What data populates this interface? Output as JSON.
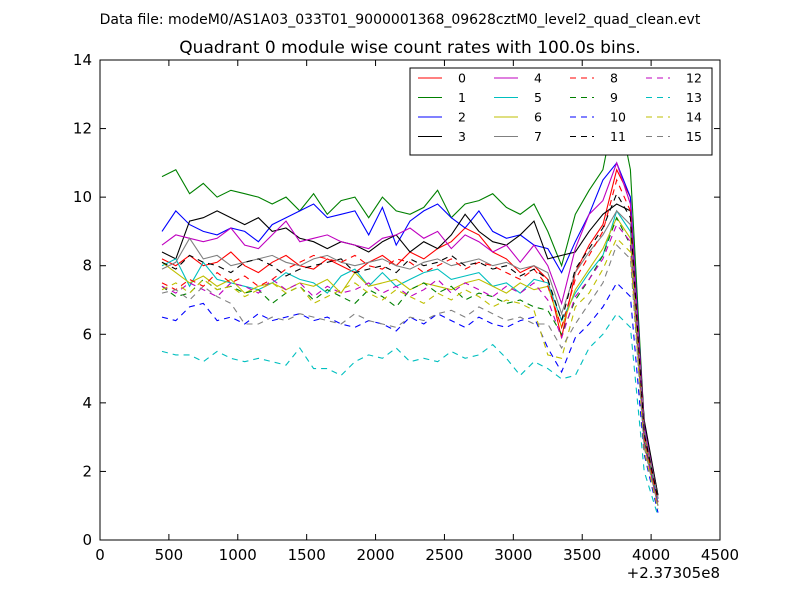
{
  "header": {
    "supertitle": "Data file: modeM0/AS1A03_033T01_9000001368_09628cztM0_level2_quad_clean.evt"
  },
  "chart_data": {
    "type": "line",
    "title": "Quadrant 0 module wise count rates with 100.0s bins.",
    "xlabel": "",
    "ylabel": "",
    "x_offset_label": "+2.37305e8",
    "xlim": [
      0,
      4500
    ],
    "ylim": [
      0,
      14
    ],
    "xticks": [
      0,
      500,
      1000,
      1500,
      2000,
      2500,
      3000,
      3500,
      4000,
      4500
    ],
    "yticks": [
      0,
      2,
      4,
      6,
      8,
      10,
      12,
      14
    ],
    "grid": false,
    "legend_position": "top-right",
    "legend_columns": 4,
    "x": [
      450,
      550,
      650,
      750,
      850,
      950,
      1050,
      1150,
      1250,
      1350,
      1450,
      1550,
      1650,
      1750,
      1850,
      1950,
      2050,
      2150,
      2250,
      2350,
      2450,
      2550,
      2650,
      2750,
      2850,
      2950,
      3050,
      3150,
      3250,
      3350,
      3450,
      3550,
      3650,
      3750,
      3850,
      3950,
      4050
    ],
    "series": [
      {
        "name": "0",
        "color": "#ff0000",
        "dash": "solid",
        "values": [
          8.2,
          8.0,
          8.3,
          8.0,
          8.1,
          8.4,
          8.0,
          7.8,
          8.1,
          8.3,
          8.0,
          7.9,
          8.2,
          8.0,
          7.8,
          8.1,
          8.3,
          8.0,
          8.4,
          8.2,
          8.5,
          8.7,
          9.1,
          8.9,
          8.4,
          8.2,
          7.8,
          8.0,
          7.6,
          5.9,
          7.8,
          8.6,
          9.2,
          10.8,
          10.0,
          3.1,
          1.2
        ]
      },
      {
        "name": "1",
        "color": "#008000",
        "dash": "solid",
        "values": [
          10.6,
          10.8,
          10.1,
          10.4,
          10.0,
          10.2,
          10.1,
          10.0,
          9.8,
          10.0,
          9.6,
          10.1,
          9.5,
          9.9,
          10.0,
          9.4,
          10.0,
          9.6,
          9.5,
          9.7,
          10.2,
          9.4,
          9.8,
          9.9,
          10.1,
          9.7,
          9.5,
          9.8,
          9.0,
          8.0,
          9.5,
          10.2,
          10.8,
          12.8,
          10.8,
          3.4,
          1.3
        ]
      },
      {
        "name": "2",
        "color": "#0000ff",
        "dash": "solid",
        "values": [
          9.0,
          9.6,
          9.2,
          9.0,
          8.9,
          9.1,
          9.0,
          8.7,
          9.2,
          9.4,
          9.6,
          9.8,
          9.4,
          9.5,
          9.6,
          8.9,
          9.7,
          8.6,
          9.3,
          9.6,
          9.8,
          9.4,
          9.1,
          9.6,
          9.0,
          8.8,
          8.9,
          8.6,
          8.5,
          7.8,
          8.7,
          9.5,
          10.5,
          11.0,
          10.0,
          3.4,
          1.2
        ]
      },
      {
        "name": "3",
        "color": "#000000",
        "dash": "solid",
        "values": [
          8.4,
          8.2,
          9.3,
          9.4,
          9.6,
          9.4,
          9.2,
          9.4,
          9.0,
          9.1,
          8.8,
          8.7,
          8.5,
          8.7,
          8.6,
          8.4,
          8.7,
          8.9,
          8.4,
          8.7,
          8.5,
          8.9,
          9.5,
          9.0,
          8.7,
          8.6,
          8.9,
          9.3,
          8.2,
          8.3,
          8.4,
          9.0,
          9.5,
          9.8,
          9.6,
          3.5,
          1.3
        ]
      },
      {
        "name": "4",
        "color": "#bf00bf",
        "dash": "solid",
        "values": [
          8.6,
          8.9,
          8.8,
          8.7,
          8.8,
          9.1,
          8.6,
          8.5,
          8.9,
          9.3,
          8.7,
          8.8,
          8.9,
          8.7,
          8.6,
          8.5,
          8.8,
          8.9,
          9.1,
          8.8,
          9.0,
          8.5,
          8.9,
          8.7,
          8.4,
          8.6,
          8.1,
          8.6,
          8.0,
          6.9,
          8.5,
          9.5,
          9.9,
          11.0,
          9.8,
          3.3,
          1.2
        ]
      },
      {
        "name": "5",
        "color": "#00bfbf",
        "dash": "solid",
        "values": [
          8.0,
          8.2,
          7.4,
          8.1,
          7.6,
          7.5,
          7.4,
          7.3,
          7.5,
          7.8,
          7.6,
          7.5,
          7.2,
          7.7,
          7.9,
          7.4,
          7.8,
          7.4,
          7.6,
          7.8,
          7.9,
          7.6,
          7.7,
          7.8,
          7.4,
          7.5,
          7.2,
          7.6,
          7.5,
          6.4,
          7.2,
          7.8,
          8.3,
          9.6,
          9.0,
          2.9,
          1.1
        ]
      },
      {
        "name": "6",
        "color": "#bfbf00",
        "dash": "solid",
        "values": [
          8.1,
          7.8,
          7.5,
          7.7,
          7.4,
          7.6,
          7.2,
          7.4,
          7.5,
          7.3,
          7.5,
          7.4,
          7.6,
          7.2,
          7.8,
          7.4,
          7.5,
          7.6,
          7.3,
          7.5,
          7.4,
          7.3,
          7.5,
          7.6,
          7.4,
          7.2,
          7.5,
          7.3,
          7.4,
          6.2,
          7.3,
          7.9,
          8.5,
          9.4,
          8.8,
          2.8,
          1.0
        ]
      },
      {
        "name": "7",
        "color": "#808080",
        "dash": "solid",
        "values": [
          7.9,
          8.1,
          8.8,
          8.2,
          8.3,
          8.0,
          8.1,
          8.2,
          8.3,
          8.1,
          8.0,
          8.2,
          8.3,
          8.1,
          8.0,
          8.1,
          8.2,
          8.0,
          7.9,
          8.1,
          8.2,
          8.0,
          8.1,
          8.2,
          8.0,
          8.1,
          7.9,
          8.0,
          7.8,
          6.6,
          7.8,
          8.4,
          8.9,
          9.6,
          9.2,
          3.2,
          1.2
        ]
      },
      {
        "name": "8",
        "color": "#ff0000",
        "dash": "dashed",
        "values": [
          7.5,
          7.3,
          7.6,
          7.4,
          7.8,
          7.5,
          7.7,
          7.4,
          7.6,
          7.9,
          8.1,
          8.3,
          8.2,
          8.1,
          8.3,
          8.0,
          7.9,
          8.2,
          8.1,
          7.8,
          8.0,
          8.2,
          7.9,
          8.1,
          8.0,
          7.8,
          7.6,
          7.9,
          7.4,
          6.2,
          7.6,
          8.3,
          9.0,
          10.5,
          9.6,
          3.0,
          1.1
        ]
      },
      {
        "name": "9",
        "color": "#008000",
        "dash": "dashed",
        "values": [
          7.4,
          7.1,
          7.2,
          7.6,
          7.3,
          7.4,
          7.2,
          7.3,
          6.9,
          7.2,
          7.4,
          7.0,
          7.3,
          7.1,
          6.9,
          7.3,
          7.1,
          6.8,
          7.3,
          7.5,
          7.2,
          7.4,
          7.0,
          7.2,
          7.1,
          6.9,
          7.0,
          6.8,
          6.7,
          6.0,
          7.0,
          7.6,
          8.3,
          9.4,
          8.6,
          2.9,
          1.0
        ]
      },
      {
        "name": "10",
        "color": "#0000ff",
        "dash": "dashed",
        "values": [
          6.5,
          6.4,
          6.8,
          6.9,
          6.4,
          6.5,
          6.3,
          6.6,
          6.4,
          6.5,
          6.6,
          6.4,
          6.5,
          6.3,
          6.2,
          6.4,
          6.3,
          6.1,
          6.5,
          6.3,
          6.6,
          6.4,
          6.2,
          6.5,
          6.3,
          6.2,
          6.4,
          6.5,
          5.6,
          4.9,
          5.9,
          6.3,
          6.8,
          7.5,
          7.1,
          2.5,
          0.8
        ]
      },
      {
        "name": "11",
        "color": "#000000",
        "dash": "dashed",
        "values": [
          8.1,
          7.9,
          8.3,
          8.1,
          8.0,
          7.8,
          8.1,
          8.2,
          8.0,
          7.7,
          7.9,
          8.0,
          8.1,
          8.2,
          7.8,
          7.9,
          8.0,
          7.8,
          8.2,
          8.0,
          8.1,
          8.3,
          8.0,
          8.1,
          7.9,
          8.0,
          7.7,
          7.9,
          7.6,
          6.4,
          7.9,
          8.5,
          9.1,
          10.1,
          9.4,
          3.1,
          1.2
        ]
      },
      {
        "name": "12",
        "color": "#bf00bf",
        "dash": "dashed",
        "values": [
          7.4,
          7.2,
          7.5,
          7.3,
          7.1,
          7.5,
          7.4,
          7.2,
          7.6,
          7.3,
          7.5,
          7.1,
          7.4,
          7.2,
          7.3,
          7.5,
          7.2,
          7.4,
          7.1,
          7.3,
          7.6,
          7.2,
          7.5,
          7.3,
          7.1,
          7.4,
          7.2,
          7.5,
          7.0,
          5.9,
          7.1,
          7.6,
          8.2,
          9.2,
          8.7,
          2.8,
          1.0
        ]
      },
      {
        "name": "13",
        "color": "#00bfbf",
        "dash": "dashed",
        "values": [
          5.5,
          5.4,
          5.4,
          5.2,
          5.5,
          5.3,
          5.2,
          5.3,
          5.2,
          5.1,
          5.6,
          5.0,
          5.0,
          4.8,
          5.2,
          5.4,
          5.3,
          5.6,
          5.2,
          5.3,
          5.2,
          5.5,
          5.3,
          5.4,
          5.7,
          5.3,
          4.8,
          5.2,
          5.0,
          4.7,
          4.8,
          5.6,
          6.0,
          6.6,
          6.2,
          2.0,
          0.7
        ]
      },
      {
        "name": "14",
        "color": "#bfbf00",
        "dash": "dashed",
        "values": [
          7.3,
          7.5,
          7.2,
          7.6,
          7.3,
          7.4,
          7.1,
          7.3,
          7.5,
          7.2,
          7.4,
          6.9,
          7.1,
          7.3,
          7.5,
          7.2,
          7.0,
          7.3,
          7.1,
          6.9,
          7.2,
          7.0,
          7.3,
          7.1,
          6.8,
          7.0,
          6.9,
          6.7,
          5.4,
          5.3,
          6.8,
          7.2,
          7.9,
          8.8,
          8.4,
          2.6,
          0.9
        ]
      },
      {
        "name": "15",
        "color": "#808080",
        "dash": "dashed",
        "values": [
          7.2,
          7.3,
          7.0,
          7.4,
          7.1,
          6.9,
          6.3,
          6.3,
          6.5,
          6.4,
          6.6,
          6.5,
          6.4,
          6.3,
          6.6,
          6.4,
          6.3,
          6.2,
          6.5,
          6.4,
          6.6,
          6.7,
          6.5,
          6.8,
          6.6,
          6.4,
          6.5,
          6.3,
          6.3,
          5.6,
          6.3,
          6.9,
          7.5,
          8.6,
          8.2,
          2.7,
          1.0
        ]
      }
    ]
  }
}
